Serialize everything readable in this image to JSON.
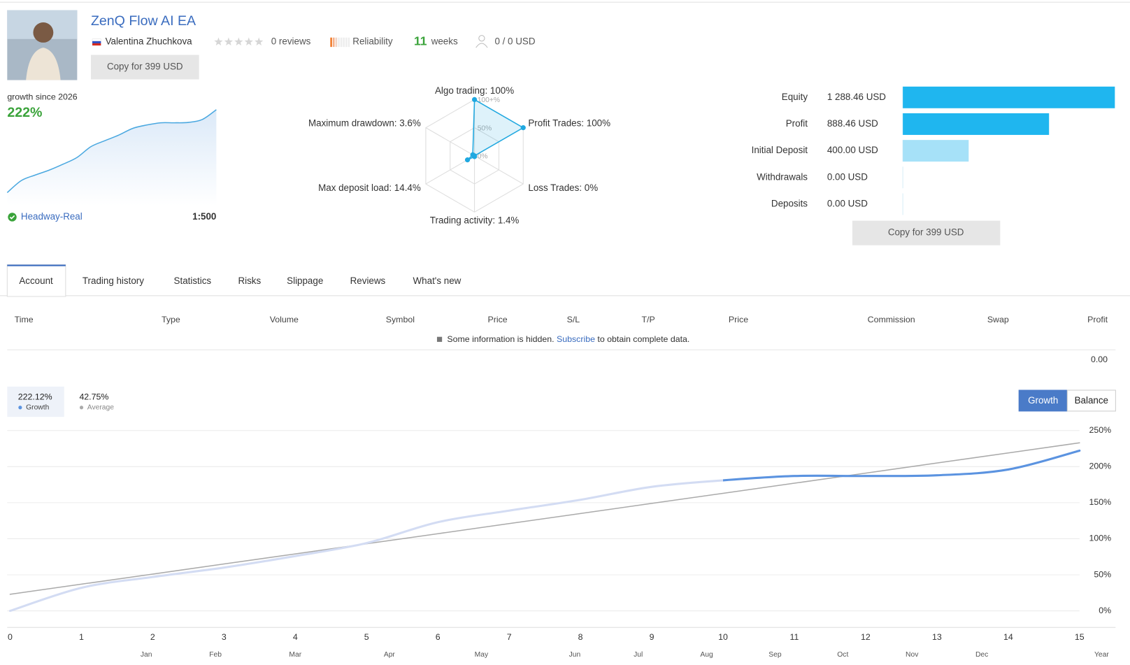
{
  "header": {
    "title": "ZenQ Flow AI EA",
    "author": "Valentina Zhuchkova",
    "reviews": "0 reviews",
    "reliability": "Reliability",
    "weeks": "11",
    "weeks_label": "weeks",
    "subscribers": "0 / 0 USD",
    "copy_button": "Copy for 399 USD"
  },
  "profile": {
    "growth_label": "growth since 2026",
    "growth_value": "222%",
    "broker": "Headway-Real",
    "leverage": "1:500"
  },
  "tabs": {
    "items": [
      "Account",
      "Trading history",
      "Statistics",
      "Risks",
      "Slippage",
      "Reviews",
      "What's new"
    ],
    "active": 0
  },
  "table": {
    "columns": [
      "Time",
      "Type",
      "Volume",
      "Symbol",
      "Price",
      "S/L",
      "T/P",
      "Price",
      "Commission",
      "Swap",
      "Profit"
    ],
    "notice": {
      "text": "Some information is hidden.",
      "link": "Subscribe",
      "rest": "to obtain complete data."
    },
    "total": "0.00"
  },
  "chart_data": [
    {
      "type": "radar",
      "categories": [
        "Algo trading:",
        "Profit Trades:",
        "Loss Trades:",
        "Trading activity:",
        "Max deposit load:",
        "Maximum drawdown:"
      ],
      "values": [
        100,
        100,
        0,
        1.4,
        14.4,
        3.6
      ],
      "value_labels": [
        "100%",
        "100%",
        "0%",
        "1.4%",
        "14.4%",
        "3.6%"
      ],
      "rlim": [
        0,
        100
      ],
      "rticks": [
        {
          "value": 100,
          "label": "100+%"
        },
        {
          "value": 50,
          "label": "50%"
        },
        {
          "value": 0,
          "label": "0%"
        }
      ],
      "color": "#1fa8e0"
    },
    {
      "type": "hbar",
      "categories": [
        "Equity",
        "Profit",
        "Initial Deposit",
        "Withdrawals",
        "Deposits"
      ],
      "values": [
        1288.46,
        888.46,
        400,
        0,
        0
      ],
      "value_labels": [
        "1 288.46 USD",
        "888.46 USD",
        "400.00 USD",
        "0.00 USD",
        "0.00 USD"
      ],
      "colors": [
        "#1fb6ef",
        "#1fb6ef",
        "#a6e1f8",
        "#a6e1f8",
        "#a6e1f8"
      ]
    },
    {
      "type": "line",
      "x": [
        0,
        1,
        2,
        3,
        4,
        5,
        6,
        7,
        8,
        9,
        10,
        11,
        12,
        13,
        14,
        15
      ],
      "xlim": [
        0,
        15
      ],
      "xticks": [
        0,
        1,
        2,
        3,
        4,
        5,
        6,
        7,
        8,
        9,
        10,
        11,
        12,
        13,
        14,
        15
      ],
      "month_ticks": [
        {
          "value": 1.91,
          "label": "Jan"
        },
        {
          "value": 2.88,
          "label": "Feb"
        },
        {
          "value": 4.0,
          "label": "Mar"
        },
        {
          "value": 5.32,
          "label": "Apr"
        },
        {
          "value": 6.61,
          "label": "May"
        },
        {
          "value": 7.92,
          "label": "Jun"
        },
        {
          "value": 8.81,
          "label": "Jul"
        },
        {
          "value": 9.77,
          "label": "Aug"
        },
        {
          "value": 10.73,
          "label": "Sep"
        },
        {
          "value": 11.68,
          "label": "Oct"
        },
        {
          "value": 12.65,
          "label": "Nov"
        },
        {
          "value": 13.63,
          "label": "Dec"
        },
        {
          "value": 15.31,
          "label": "Year"
        }
      ],
      "ylim": [
        -23,
        250
      ],
      "yticks": [
        {
          "value": 0,
          "label": "0%"
        },
        {
          "value": 50,
          "label": "50%"
        },
        {
          "value": 100,
          "label": "100%"
        },
        {
          "value": 150,
          "label": "150%"
        },
        {
          "value": 200,
          "label": "200%"
        },
        {
          "value": 250,
          "label": "250%"
        }
      ],
      "grid": true,
      "series": [
        {
          "name": "Growth",
          "summary": "222.12%",
          "color": "#5b93e0",
          "faded_color": "#d3dcf3",
          "recent_from_x": 10,
          "values": [
            0,
            32,
            47,
            60,
            76,
            94,
            123,
            139,
            154,
            172,
            181,
            187,
            187,
            188,
            196,
            222.12
          ]
        },
        {
          "name": "Average",
          "summary": "42.75%",
          "color": "#aaaaaa",
          "values": [
            23,
            37,
            51,
            65,
            79,
            93,
            107,
            121,
            135,
            149,
            163,
            177,
            191,
            205,
            219,
            233
          ]
        }
      ],
      "modes": [
        "Growth",
        "Balance"
      ],
      "active_mode": 0
    }
  ]
}
